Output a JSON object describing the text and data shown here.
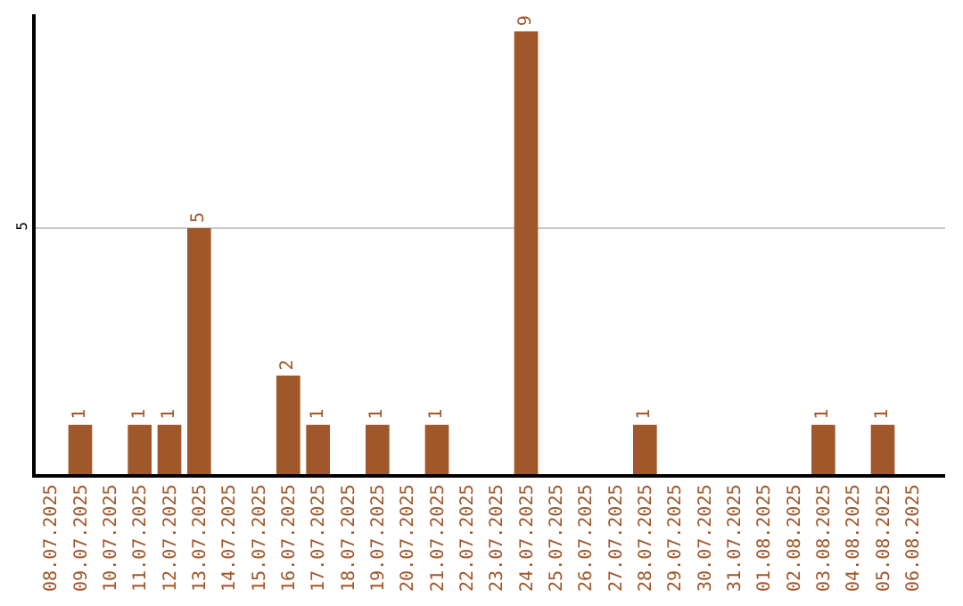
{
  "chart_data": {
    "type": "bar",
    "categories": [
      "08.07.2025",
      "09.07.2025",
      "10.07.2025",
      "11.07.2025",
      "12.07.2025",
      "13.07.2025",
      "14.07.2025",
      "15.07.2025",
      "16.07.2025",
      "17.07.2025",
      "18.07.2025",
      "19.07.2025",
      "20.07.2025",
      "21.07.2025",
      "22.07.2025",
      "23.07.2025",
      "24.07.2025",
      "25.07.2025",
      "26.07.2025",
      "27.07.2025",
      "28.07.2025",
      "29.07.2025",
      "30.07.2025",
      "31.07.2025",
      "01.08.2025",
      "02.08.2025",
      "03.08.2025",
      "04.08.2025",
      "05.08.2025",
      "06.08.2025"
    ],
    "values": [
      0,
      1,
      0,
      1,
      1,
      5,
      0,
      0,
      2,
      1,
      0,
      1,
      0,
      1,
      0,
      0,
      9,
      0,
      0,
      0,
      1,
      0,
      0,
      0,
      0,
      0,
      1,
      0,
      1,
      0
    ],
    "value_labels": [
      null,
      "1",
      null,
      "1",
      "1",
      "5",
      null,
      null,
      "2",
      "1",
      null,
      "1",
      null,
      "1",
      null,
      null,
      "9",
      null,
      null,
      null,
      "1",
      null,
      null,
      null,
      null,
      null,
      "1",
      null,
      "1",
      null
    ],
    "color": "#a0572a",
    "ylim": [
      0,
      9.35
    ],
    "yticks": [
      5
    ],
    "grid": "y"
  }
}
